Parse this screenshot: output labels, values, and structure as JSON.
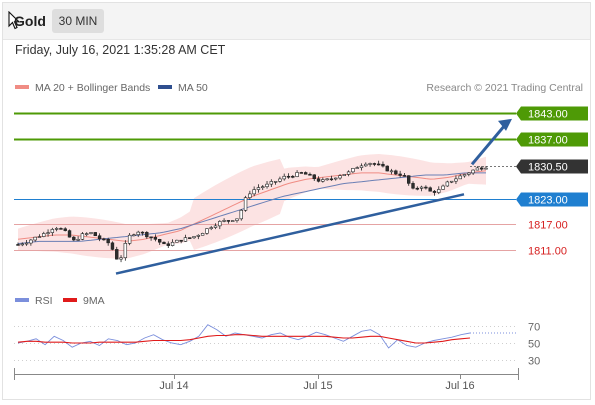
{
  "header": {
    "symbol": "Gold",
    "timeframe": "30 MIN",
    "datetime": "Friday, July 16, 2021 1:35:28 AM CET"
  },
  "legend": {
    "items": [
      {
        "label": "MA 20 + Bollinger Bands",
        "color": "#f08c84"
      },
      {
        "label": "MA 50",
        "color": "#2f4f8f"
      }
    ],
    "copyright": "Research © 2021 Trading Central"
  },
  "rsi_legend": {
    "items": [
      {
        "label": "RSI",
        "color": "#7b8fdc"
      },
      {
        "label": "9MA",
        "color": "#e01b1b"
      }
    ]
  },
  "chart_data": [
    {
      "type": "candlestick",
      "title": "Gold",
      "timeframe": "30 MIN",
      "x_labels": [
        "Jul 14",
        "Jul 15",
        "Jul 16"
      ],
      "ylim": [
        1804,
        1846
      ],
      "current_price": "1830.50",
      "levels": [
        {
          "value": "1843.00",
          "kind": "target",
          "color": "#4e9a06"
        },
        {
          "value": "1837.00",
          "kind": "target",
          "color": "#4e9a06"
        },
        {
          "value": "1830.50",
          "kind": "last",
          "color": "#333333"
        },
        {
          "value": "1823.00",
          "kind": "pivot",
          "color": "#1f7fd0"
        },
        {
          "value": "1817.00",
          "kind": "support",
          "color": "#d61f1f"
        },
        {
          "value": "1811.00",
          "kind": "support",
          "color": "#d61f1f"
        }
      ],
      "trendline": {
        "from": [
          "Jul 13",
          1805.5
        ],
        "to": [
          "Jul 16",
          1824.0
        ]
      },
      "projection_arrow": {
        "from": 1831.0,
        "to": 1843.0
      },
      "price_path": [
        1812.3,
        1813.0,
        1814.0,
        1815.0,
        1816.5,
        1815.5,
        1813.0,
        1814.5,
        1815.0,
        1813.5,
        1812.5,
        1808.0,
        1814.0,
        1815.5,
        1814.5,
        1813.5,
        1812.0,
        1812.8,
        1813.5,
        1814.0,
        1815.0,
        1816.5,
        1817.5,
        1818.0,
        1818.5,
        1824.0,
        1825.5,
        1826.0,
        1827.0,
        1828.0,
        1828.5,
        1829.0,
        1828.0,
        1827.0,
        1827.5,
        1828.5,
        1829.0,
        1830.5,
        1831.5,
        1831.0,
        1830.0,
        1829.0,
        1828.5,
        1825.0,
        1826.0,
        1824.5,
        1825.0,
        1827.0,
        1828.0,
        1829.0,
        1830.0,
        1830.5
      ],
      "ma20_path": [
        1813.5,
        1814.0,
        1814.5,
        1814.5,
        1814.0,
        1813.5,
        1813.0,
        1813.5,
        1814.5,
        1815.5,
        1817.5,
        1819.5,
        1821.5,
        1823.5,
        1825.0,
        1826.5,
        1827.5,
        1828.0,
        1828.5,
        1829.0,
        1829.0,
        1828.5,
        1828.0,
        1827.5,
        1828.0,
        1829.0,
        1829.5
      ],
      "ma50_path": [
        1812.5,
        1813.0,
        1813.0,
        1813.0,
        1813.5,
        1814.0,
        1814.5,
        1815.0,
        1816.0,
        1817.5,
        1819.0,
        1820.5,
        1822.0,
        1823.5,
        1824.5,
        1825.5,
        1826.5,
        1827.0,
        1827.5,
        1828.0,
        1828.5,
        1828.5,
        1829.0,
        1829.0
      ]
    },
    {
      "type": "line",
      "title": "RSI",
      "series": [
        {
          "name": "RSI",
          "color": "#7b8fdc",
          "values": [
            50,
            52,
            55,
            48,
            58,
            53,
            45,
            50,
            52,
            47,
            55,
            53,
            48,
            50,
            56,
            60,
            54,
            50,
            48,
            52,
            58,
            72,
            66,
            58,
            62,
            60,
            58,
            56,
            60,
            62,
            57,
            54,
            58,
            63,
            60,
            56,
            52,
            58,
            64,
            66,
            60,
            44,
            54,
            47,
            45,
            50,
            53,
            55,
            57,
            60,
            62
          ]
        },
        {
          "name": "9MA",
          "color": "#e01b1b",
          "values": [
            51,
            52,
            52,
            51,
            51,
            51,
            50,
            50,
            50,
            51,
            51,
            51,
            51,
            51,
            52,
            53,
            53,
            53,
            53,
            54,
            56,
            58,
            59,
            59,
            60,
            60,
            59,
            58,
            58,
            58,
            58,
            58,
            58,
            58,
            58,
            57,
            56,
            56,
            57,
            58,
            58,
            56,
            54,
            52,
            50,
            50,
            51,
            52,
            54,
            55,
            56
          ]
        }
      ],
      "yticks": [
        "70",
        "50",
        "30"
      ],
      "ylim": [
        20,
        80
      ]
    }
  ]
}
